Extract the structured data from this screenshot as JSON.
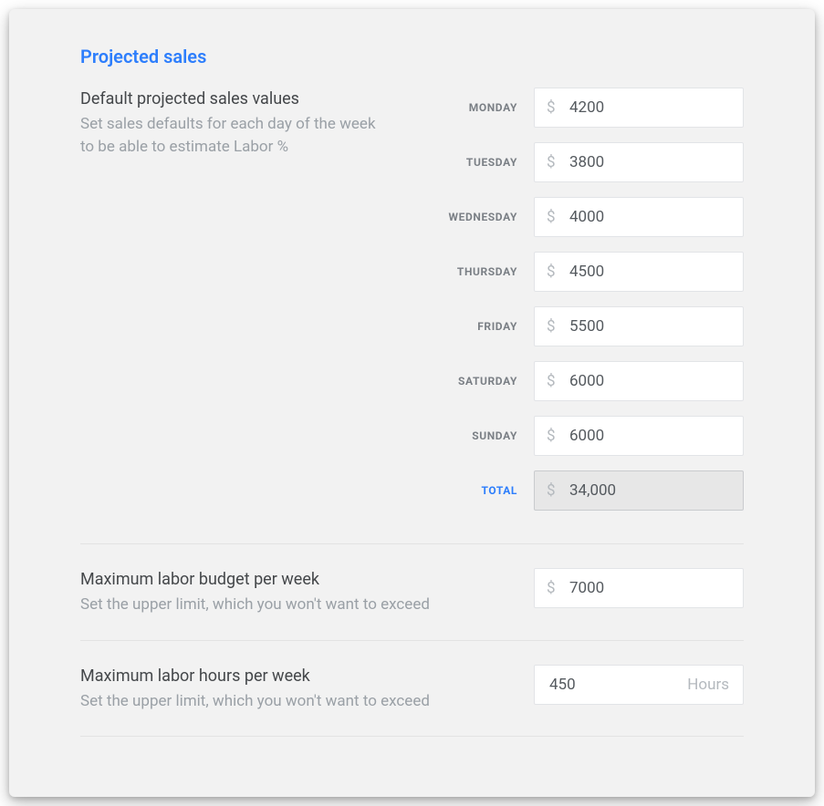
{
  "colors": {
    "accent": "#2d7efc",
    "panel_bg": "#f2f2f2",
    "input_bg": "#ffffff",
    "input_border": "#e2e4e7",
    "readonly_bg": "#e7e7e7",
    "readonly_border": "#c9cbce",
    "label_muted": "#7a7f85",
    "help_text": "#9aa0a6",
    "text": "#44474a",
    "currency_symbol": "#b4b9be",
    "divider": "#e3e3e3"
  },
  "section": {
    "title": "Projected sales"
  },
  "defaults": {
    "title": "Default projected sales values",
    "help": "Set sales defaults for each day of the week to be able to estimate Labor %",
    "currency_symbol": "$",
    "days": [
      {
        "label": "MONDAY",
        "value": "4200"
      },
      {
        "label": "TUESDAY",
        "value": "3800"
      },
      {
        "label": "WEDNESDAY",
        "value": "4000"
      },
      {
        "label": "THURSDAY",
        "value": "4500"
      },
      {
        "label": "FRIDAY",
        "value": "5500"
      },
      {
        "label": "SATURDAY",
        "value": "6000"
      },
      {
        "label": "SUNDAY",
        "value": "6000"
      }
    ],
    "total": {
      "label": "TOTAL",
      "value": "34,000"
    }
  },
  "max_labor_budget": {
    "title": "Maximum labor budget per week",
    "help": "Set the upper limit, which you won't want to exceed",
    "currency_symbol": "$",
    "value": "7000"
  },
  "max_labor_hours": {
    "title": "Maximum labor hours per week",
    "help": "Set the upper limit, which you won't want to exceed",
    "value": "450",
    "suffix": "Hours"
  }
}
